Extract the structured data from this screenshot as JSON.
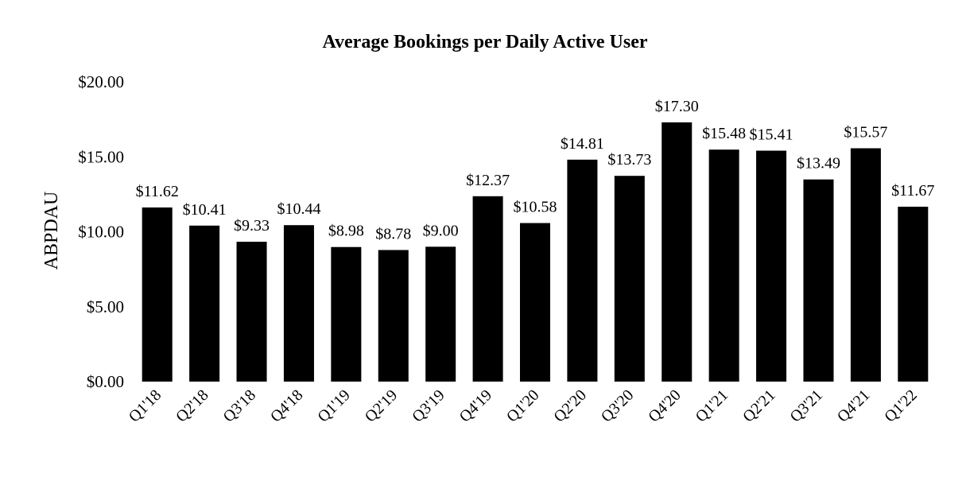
{
  "chart_data": {
    "type": "bar",
    "title": "Average Bookings per Daily Active User",
    "xlabel": "",
    "ylabel": "ABPDAU",
    "ylim": [
      0,
      20
    ],
    "yticks": [
      0,
      5,
      10,
      15,
      20
    ],
    "ytick_labels": [
      "$0.00",
      "$5.00",
      "$10.00",
      "$15.00",
      "$20.00"
    ],
    "grid": false,
    "bar_color": "#000000",
    "categories": [
      "Q1'18",
      "Q2'18",
      "Q3'18",
      "Q4'18",
      "Q1'19",
      "Q2'19",
      "Q3'19",
      "Q4'19",
      "Q1'20",
      "Q2'20",
      "Q3'20",
      "Q4'20",
      "Q1'21",
      "Q2'21",
      "Q3'21",
      "Q4'21",
      "Q1'22"
    ],
    "values": [
      11.62,
      10.41,
      9.33,
      10.44,
      8.98,
      8.78,
      9.0,
      12.37,
      10.58,
      14.81,
      13.73,
      17.3,
      15.48,
      15.41,
      13.49,
      15.57,
      11.67
    ],
    "data_labels": [
      "$11.62",
      "$10.41",
      "$9.33",
      "$10.44",
      "$8.98",
      "$8.78",
      "$9.00",
      "$12.37",
      "$10.58",
      "$14.81",
      "$13.73",
      "$17.30",
      "$15.48",
      "$15.41",
      "$13.49",
      "$15.57",
      "$11.67"
    ]
  }
}
